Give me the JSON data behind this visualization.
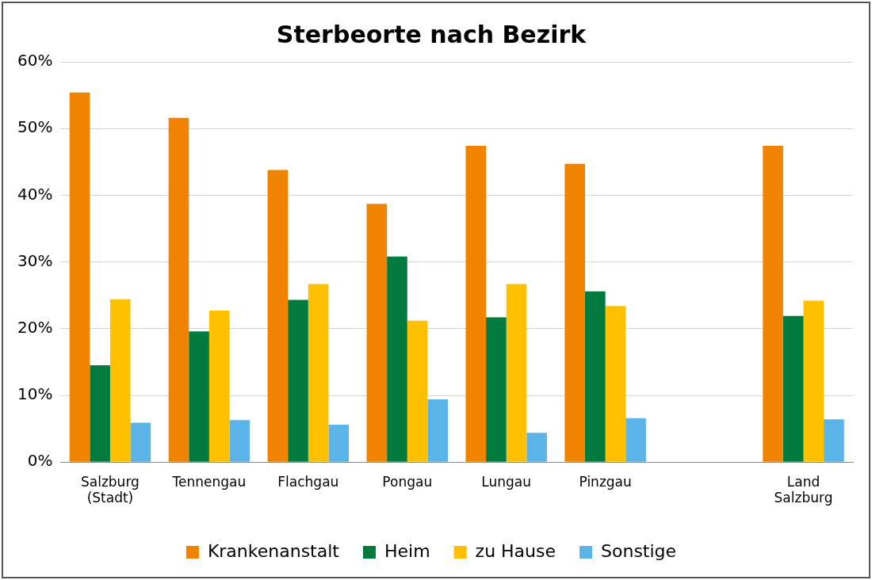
{
  "chart_data": {
    "type": "bar",
    "title": "Sterbeorte nach Bezirk",
    "categories": [
      "Salzburg (Stadt)",
      "Tennengau",
      "Flachgau",
      "Pongau",
      "Lungau",
      "Pinzgau",
      null,
      "Land Salzburg"
    ],
    "series": [
      {
        "name": "Krankenanstalt",
        "color": "#f08400",
        "values": [
          55.4,
          51.6,
          43.8,
          38.7,
          47.4,
          44.7,
          null,
          47.4
        ]
      },
      {
        "name": "Heim",
        "color": "#007a3d",
        "values": [
          14.5,
          19.6,
          24.3,
          30.8,
          21.7,
          25.6,
          null,
          21.9
        ]
      },
      {
        "name": "zu Hause",
        "color": "#ffc000",
        "values": [
          24.4,
          22.7,
          26.7,
          21.2,
          26.7,
          23.4,
          null,
          24.2
        ]
      },
      {
        "name": "Sonstige",
        "color": "#5bb4e8",
        "values": [
          5.9,
          6.3,
          5.6,
          9.4,
          4.4,
          6.6,
          null,
          6.4
        ]
      }
    ],
    "ylim": [
      0,
      60
    ],
    "yticks": [
      {
        "value": 0,
        "label": "0%"
      },
      {
        "value": 10,
        "label": "10%"
      },
      {
        "value": 20,
        "label": "20%"
      },
      {
        "value": 30,
        "label": "30%"
      },
      {
        "value": 40,
        "label": "40%"
      },
      {
        "value": 50,
        "label": "50%"
      },
      {
        "value": 60,
        "label": "60%"
      }
    ],
    "grid": "y",
    "legend": "bottom"
  }
}
